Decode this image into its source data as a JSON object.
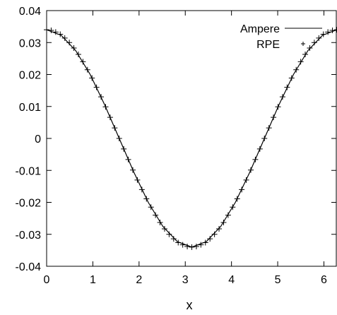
{
  "chart_data": {
    "type": "line",
    "title": "",
    "xlabel": "x",
    "ylabel": "",
    "xlim": [
      0,
      6.2832
    ],
    "ylim": [
      -0.04,
      0.04
    ],
    "x_ticks": [
      0,
      1,
      2,
      3,
      4,
      5,
      6
    ],
    "x_tick_labels": [
      "0",
      "1",
      "2",
      "3",
      "4",
      "5",
      "6"
    ],
    "y_ticks": [
      -0.04,
      -0.03,
      -0.02,
      -0.01,
      0,
      0.01,
      0.02,
      0.03,
      0.04
    ],
    "y_tick_labels": [
      "-0.04",
      "-0.03",
      "-0.02",
      "-0.01",
      "0",
      "0.01",
      "0.02",
      "0.03",
      "0.04"
    ],
    "grid": false,
    "legend_position": "top-right",
    "colors": {
      "axis": "#000000",
      "ampere": "#000000",
      "rpe": "#000000"
    },
    "series": [
      {
        "name": "Ampere",
        "style": "line",
        "x": [
          0,
          0.3142,
          0.6283,
          0.9425,
          1.2566,
          1.5708,
          1.885,
          2.1991,
          2.5133,
          2.8274,
          3.1416,
          3.4558,
          3.7699,
          4.0841,
          4.3982,
          4.7124,
          5.0265,
          5.3407,
          5.6549,
          5.969,
          6.2832
        ],
        "y": [
          0.034,
          0.0323,
          0.0275,
          0.02,
          0.0105,
          0,
          -0.0105,
          -0.02,
          -0.0275,
          -0.0323,
          -0.034,
          -0.0323,
          -0.0275,
          -0.02,
          -0.0105,
          0,
          0.0105,
          0.02,
          0.0275,
          0.0323,
          0.034
        ]
      },
      {
        "name": "RPE",
        "style": "points",
        "marker": "+",
        "x": [
          0,
          0.0982,
          0.1963,
          0.2945,
          0.3927,
          0.4909,
          0.589,
          0.6872,
          0.7854,
          0.8836,
          0.9817,
          1.0799,
          1.1781,
          1.2763,
          1.3744,
          1.4726,
          1.5708,
          1.669,
          1.7671,
          1.8653,
          1.9635,
          2.0617,
          2.1598,
          2.258,
          2.3562,
          2.4544,
          2.5525,
          2.6507,
          2.7489,
          2.8471,
          2.9452,
          3.0434,
          3.1416,
          3.2398,
          3.3379,
          3.4361,
          3.5343,
          3.6325,
          3.7306,
          3.8288,
          3.927,
          4.0252,
          4.1233,
          4.2215,
          4.3197,
          4.4179,
          4.516,
          4.6142,
          4.7124,
          4.8106,
          4.9087,
          5.0069,
          5.1051,
          5.2033,
          5.3014,
          5.3996,
          5.4978,
          5.596,
          5.6941,
          5.7923,
          5.8905,
          5.9887,
          6.0868,
          6.185,
          6.2832
        ],
        "y": [
          0.034,
          0.0338,
          0.0333,
          0.0326,
          0.0314,
          0.03,
          0.0283,
          0.0263,
          0.024,
          0.0215,
          0.0189,
          0.016,
          0.013,
          0.0099,
          0.0066,
          0.0033,
          0,
          -0.0033,
          -0.0066,
          -0.0099,
          -0.013,
          -0.016,
          -0.0189,
          -0.0215,
          -0.024,
          -0.0263,
          -0.0283,
          -0.03,
          -0.0314,
          -0.0326,
          -0.0333,
          -0.0338,
          -0.034,
          -0.0338,
          -0.0333,
          -0.0326,
          -0.0314,
          -0.03,
          -0.0283,
          -0.0263,
          -0.024,
          -0.0215,
          -0.0189,
          -0.016,
          -0.013,
          -0.0099,
          -0.0066,
          -0.0033,
          0,
          0.0033,
          0.0066,
          0.0099,
          0.013,
          0.016,
          0.0189,
          0.0215,
          0.024,
          0.0263,
          0.0283,
          0.03,
          0.0314,
          0.0326,
          0.0333,
          0.0338,
          0.034
        ]
      }
    ]
  }
}
